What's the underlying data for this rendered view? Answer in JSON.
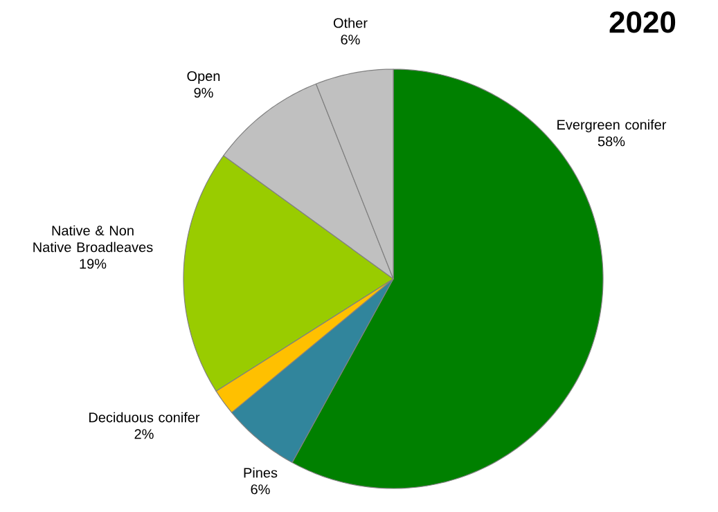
{
  "chart_data": {
    "type": "pie",
    "title": "2020",
    "categories": [
      "Evergreen conifer",
      "Pines",
      "Deciduous conifer",
      "Native & Non Native Broadleaves",
      "Open",
      "Other"
    ],
    "values": [
      58,
      6,
      2,
      19,
      9,
      6
    ],
    "value_labels": [
      "58%",
      "6%",
      "2%",
      "19%",
      "9%",
      "6%"
    ],
    "colors": [
      "#008000",
      "#31859c",
      "#ffc000",
      "#99cc00",
      "#c0c0c0",
      "#c0c0c0"
    ]
  }
}
